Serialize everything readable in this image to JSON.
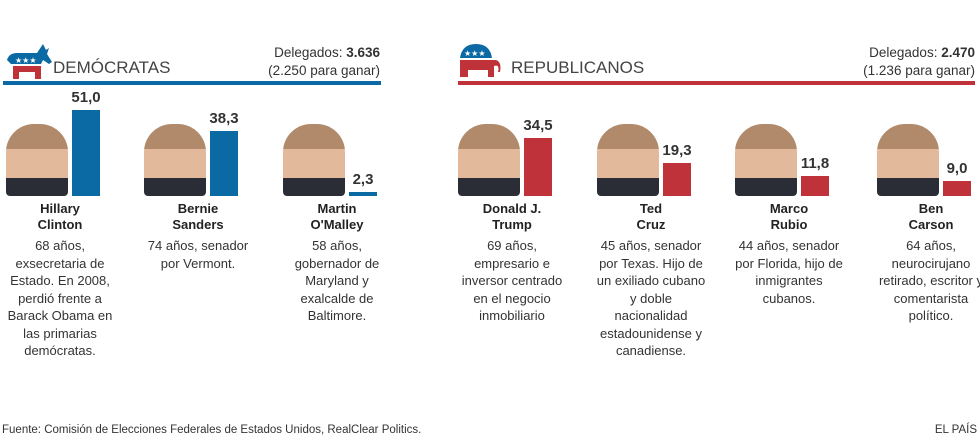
{
  "chart_data": [
    {
      "type": "bar",
      "party": "DEMÓCRATAS",
      "categories": [
        "Hillary Clinton",
        "Bernie Sanders",
        "Martin O'Malley"
      ],
      "values": [
        51.0,
        38.3,
        2.3
      ],
      "value_labels": [
        "51,0",
        "38,3",
        "2,3"
      ],
      "color": "#0b69a3"
    },
    {
      "type": "bar",
      "party": "REPUBLICANOS",
      "categories": [
        "Donald J. Trump",
        "Ted Cruz",
        "Marco Rubio",
        "Ben Carson"
      ],
      "values": [
        34.5,
        19.3,
        11.8,
        9.0
      ],
      "value_labels": [
        "34,5",
        "19,3",
        "11,8",
        "9,0"
      ],
      "color": "#c0323a"
    }
  ],
  "dem": {
    "title": "DEMÓCRATAS",
    "deleg_label": "Delegados: ",
    "deleg_value": "3.636",
    "to_win": "(2.250 para ganar)",
    "color": "#0b69a3",
    "candidates": [
      {
        "name1": "Hillary",
        "name2": "Clinton",
        "desc": "68 años, exsecretaria de Estado. En 2008, perdió frente a Barack Obama en las primarias demócratas."
      },
      {
        "name1": "Bernie",
        "name2": "Sanders",
        "desc": "74 años, senador por Vermont."
      },
      {
        "name1": "Martin",
        "name2": "O'Malley",
        "desc": "58 años, gobernador de Maryland y exalcalde de Baltimore."
      }
    ]
  },
  "rep": {
    "title": "REPUBLICANOS",
    "deleg_label": "Delegados: ",
    "deleg_value": "2.470",
    "to_win": "(1.236 para ganar)",
    "color": "#c0323a",
    "candidates": [
      {
        "name1": "Donald J.",
        "name2": "Trump",
        "desc": "69 años, empresario e inversor centrado en el negocio inmobiliario"
      },
      {
        "name1": "Ted",
        "name2": "Cruz",
        "desc": "45 años, senador por Texas. Hijo de un exiliado cubano y doble nacionalidad estadounidense y canadiense."
      },
      {
        "name1": "Marco",
        "name2": "Rubio",
        "desc": "44 años, senador por Florida, hijo de inmigrantes cubanos."
      },
      {
        "name1": "Ben",
        "name2": "Carson",
        "desc": "64 años, neurocirujano retirado, escritor y comentarista político."
      }
    ]
  },
  "footer": {
    "source": "Fuente: Comisión de Elecciones Federales de Estados Unidos, RealClear Politics.",
    "brand": "EL PAÍS"
  }
}
